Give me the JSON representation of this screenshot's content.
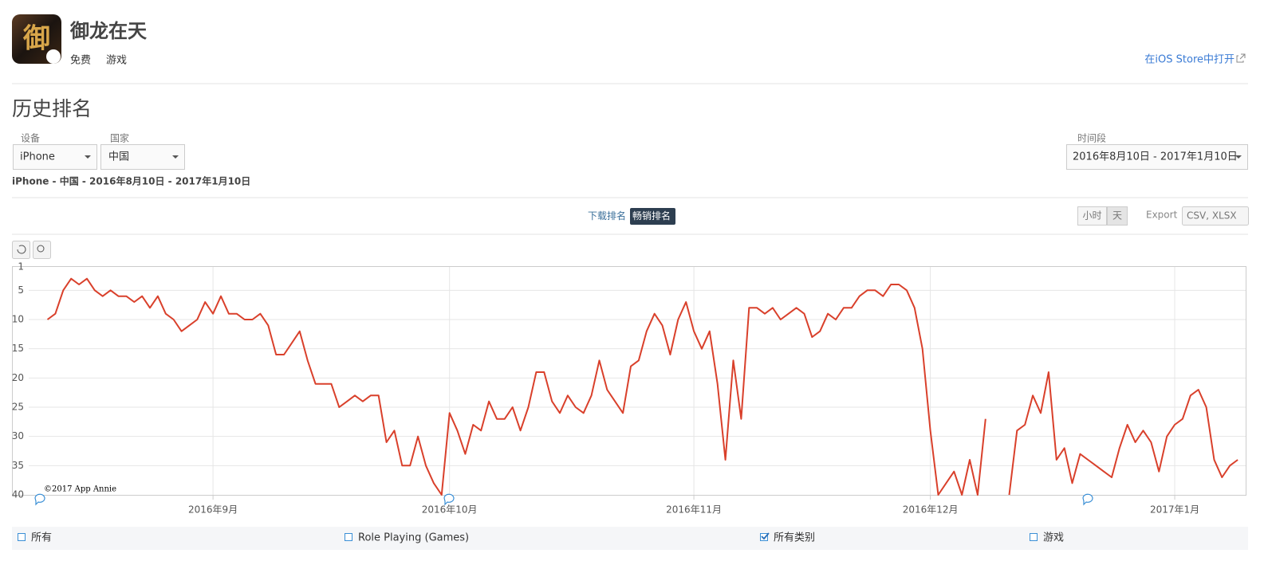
{
  "header": {
    "app_name": "御龙在天",
    "price": "免费",
    "category": "游戏",
    "store_link": "在iOS Store中打开"
  },
  "section_title": "历史排名",
  "filters": {
    "device_label": "设备",
    "device": "iPhone",
    "country_label": "国家",
    "country": "中国",
    "period_label": "时间段",
    "period": "2016年8月10日 - 2017年1月10日"
  },
  "summary": "iPhone - 中国 - 2016年8月10日 - 2017年1月10日",
  "tabs": [
    {
      "label": "下载排名",
      "active": false
    },
    {
      "label": "畅销排名",
      "active": true
    }
  ],
  "granularity": [
    {
      "label": "小时",
      "active": false
    },
    {
      "label": "天",
      "active": true
    }
  ],
  "export": {
    "label": "Export",
    "formats": "CSV, XLSX"
  },
  "chart_data": {
    "type": "line",
    "credit": "©2017 App Annie",
    "xlim": [
      "2016-08-07",
      "2017-01-10"
    ],
    "xticks": [
      {
        "value": "2016-09-01",
        "label": "2016年9月"
      },
      {
        "value": "2016-10-01",
        "label": "2016年10月"
      },
      {
        "value": "2016-11-01",
        "label": "2016年11月"
      },
      {
        "value": "2016-12-01",
        "label": "2016年12月"
      },
      {
        "value": "2017-01-01",
        "label": "2017年1月"
      }
    ],
    "ylim": [
      40,
      1
    ],
    "yticks": [
      1,
      5,
      10,
      15,
      20,
      25,
      30,
      35,
      40
    ],
    "grid": true,
    "x": [
      "2016-08-11",
      "2016-08-12",
      "2016-08-13",
      "2016-08-14",
      "2016-08-15",
      "2016-08-16",
      "2016-08-17",
      "2016-08-18",
      "2016-08-19",
      "2016-08-20",
      "2016-08-21",
      "2016-08-22",
      "2016-08-23",
      "2016-08-24",
      "2016-08-25",
      "2016-08-26",
      "2016-08-27",
      "2016-08-28",
      "2016-08-29",
      "2016-08-30",
      "2016-08-31",
      "2016-09-01",
      "2016-09-02",
      "2016-09-03",
      "2016-09-04",
      "2016-09-05",
      "2016-09-06",
      "2016-09-07",
      "2016-09-08",
      "2016-09-09",
      "2016-09-10",
      "2016-09-11",
      "2016-09-12",
      "2016-09-13",
      "2016-09-14",
      "2016-09-15",
      "2016-09-16",
      "2016-09-17",
      "2016-09-18",
      "2016-09-19",
      "2016-09-20",
      "2016-09-21",
      "2016-09-22",
      "2016-09-23",
      "2016-09-24",
      "2016-09-25",
      "2016-09-26",
      "2016-09-27",
      "2016-09-28",
      "2016-09-29",
      "2016-09-30",
      "2016-10-01",
      "2016-10-02",
      "2016-10-03",
      "2016-10-04",
      "2016-10-05",
      "2016-10-06",
      "2016-10-07",
      "2016-10-08",
      "2016-10-09",
      "2016-10-10",
      "2016-10-11",
      "2016-10-12",
      "2016-10-13",
      "2016-10-14",
      "2016-10-15",
      "2016-10-16",
      "2016-10-17",
      "2016-10-18",
      "2016-10-19",
      "2016-10-20",
      "2016-10-21",
      "2016-10-22",
      "2016-10-23",
      "2016-10-24",
      "2016-10-25",
      "2016-10-26",
      "2016-10-27",
      "2016-10-28",
      "2016-10-29",
      "2016-10-30",
      "2016-10-31",
      "2016-11-01",
      "2016-11-02",
      "2016-11-03",
      "2016-11-04",
      "2016-11-05",
      "2016-11-06",
      "2016-11-07",
      "2016-11-08",
      "2016-11-09",
      "2016-11-10",
      "2016-11-11",
      "2016-11-12",
      "2016-11-13",
      "2016-11-14",
      "2016-11-15",
      "2016-11-16",
      "2016-11-17",
      "2016-11-18",
      "2016-11-19",
      "2016-11-20",
      "2016-11-21",
      "2016-11-22",
      "2016-11-23",
      "2016-11-24",
      "2016-11-25",
      "2016-11-26",
      "2016-11-27",
      "2016-11-28",
      "2016-11-29",
      "2016-11-30",
      "2016-12-01",
      "2016-12-02",
      "2016-12-03",
      "2016-12-04",
      "2016-12-05",
      "2016-12-06",
      "2016-12-07",
      "2016-12-08",
      "2016-12-09",
      "2016-12-10",
      "2016-12-11",
      "2016-12-12",
      "2016-12-13",
      "2016-12-14",
      "2016-12-15",
      "2016-12-16",
      "2016-12-17",
      "2016-12-18",
      "2016-12-19",
      "2016-12-20",
      "2016-12-21",
      "2016-12-22",
      "2016-12-23",
      "2016-12-24",
      "2016-12-25",
      "2016-12-26",
      "2016-12-27",
      "2016-12-28",
      "2016-12-29",
      "2016-12-30",
      "2016-12-31",
      "2017-01-01",
      "2017-01-02",
      "2017-01-03",
      "2017-01-04",
      "2017-01-05",
      "2017-01-06",
      "2017-01-07",
      "2017-01-08",
      "2017-01-09"
    ],
    "series": [
      {
        "color": "#d9402b",
        "values": [
          10,
          9,
          5,
          3,
          4,
          3,
          5,
          6,
          5,
          6,
          6,
          7,
          6,
          8,
          6,
          9,
          10,
          12,
          11,
          10,
          7,
          9,
          6,
          9,
          9,
          10,
          10,
          9,
          11,
          16,
          16,
          14,
          12,
          17,
          21,
          21,
          21,
          25,
          24,
          23,
          24,
          23,
          23,
          31,
          29,
          35,
          35,
          30,
          35,
          38,
          40,
          26,
          29,
          33,
          28,
          29,
          24,
          27,
          27,
          25,
          29,
          25,
          19,
          19,
          24,
          26,
          23,
          25,
          26,
          23,
          17,
          22,
          24,
          26,
          18,
          17,
          12,
          9,
          11,
          16,
          10,
          7,
          12,
          15,
          12,
          21,
          34,
          17,
          27,
          8,
          8,
          9,
          8,
          10,
          9,
          8,
          9,
          13,
          12,
          9,
          10,
          8,
          8,
          6,
          5,
          5,
          6,
          4,
          4,
          5,
          8,
          15,
          29,
          40,
          38,
          36,
          40,
          34,
          40,
          27,
          null,
          null,
          40,
          29,
          28,
          23,
          26,
          19,
          34,
          32,
          38,
          33,
          34,
          35,
          36,
          37,
          32,
          28,
          31,
          29,
          31,
          36,
          30,
          28,
          27,
          23,
          22,
          25,
          34,
          37,
          35,
          34
        ]
      }
    ],
    "legend": [
      {
        "label": "所有",
        "checked": false
      },
      {
        "label": "Role Playing (Games)",
        "checked": false
      },
      {
        "label": "所有类别",
        "checked": true
      },
      {
        "label": "游戏",
        "checked": false
      }
    ]
  }
}
